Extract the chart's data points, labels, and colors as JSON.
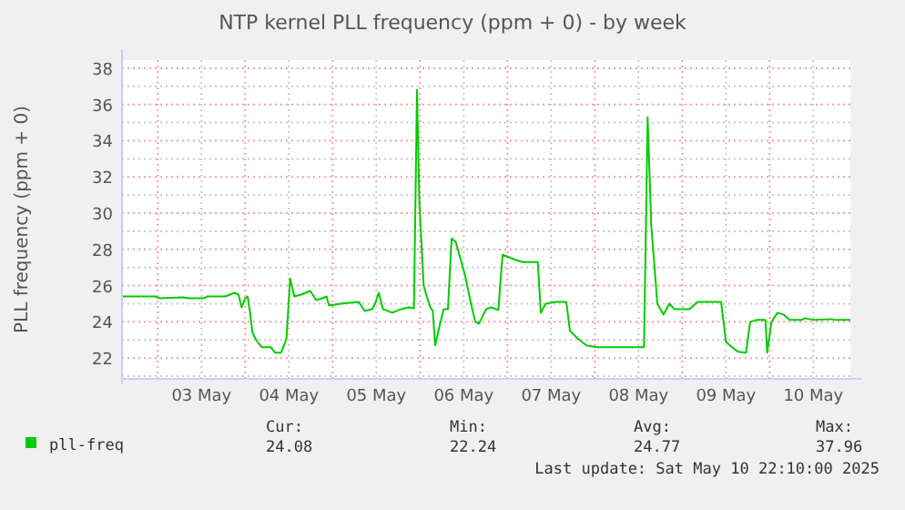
{
  "chart_data": {
    "type": "line",
    "title": "NTP kernel PLL frequency (ppm + 0) - by week",
    "ylabel": "PLL frequency (ppm + 0)",
    "x": [
      "2025-05-02T14:10",
      "2025-05-02T23:20",
      "2025-05-03T00:30",
      "2025-05-03T06:50",
      "2025-05-03T08:30",
      "2025-05-03T12:40",
      "2025-05-03T13:30",
      "2025-05-03T18:30",
      "2025-05-03T21:00",
      "2025-05-03T22:10",
      "2025-05-03T23:00",
      "2025-05-04T00:00",
      "2025-05-04T00:40",
      "2025-05-04T01:20",
      "2025-05-04T02:00",
      "2025-05-04T03:00",
      "2025-05-04T04:30",
      "2025-05-04T07:00",
      "2025-05-04T08:10",
      "2025-05-04T09:50",
      "2025-05-04T10:40",
      "2025-05-04T11:20",
      "2025-05-04T12:20",
      "2025-05-04T13:30",
      "2025-05-04T15:20",
      "2025-05-04T17:50",
      "2025-05-04T19:30",
      "2025-05-04T21:10",
      "2025-05-04T22:20",
      "2025-05-04T23:00",
      "2025-05-05T02:10",
      "2025-05-05T07:10",
      "2025-05-05T08:50",
      "2025-05-05T10:50",
      "2025-05-05T11:40",
      "2025-05-05T12:40",
      "2025-05-05T13:50",
      "2025-05-05T16:20",
      "2025-05-05T18:50",
      "2025-05-05T20:50",
      "2025-05-05T22:20",
      "2025-05-05T23:10",
      "2025-05-05T23:50",
      "2025-05-06T01:00",
      "2025-05-06T01:50",
      "2025-05-06T02:50",
      "2025-05-06T03:30",
      "2025-05-06T04:10",
      "2025-05-06T05:10",
      "2025-05-06T06:30",
      "2025-05-06T07:40",
      "2025-05-06T08:40",
      "2025-05-06T09:50",
      "2025-05-06T10:40",
      "2025-05-06T12:20",
      "2025-05-06T14:00",
      "2025-05-06T15:10",
      "2025-05-06T16:10",
      "2025-05-06T18:10",
      "2025-05-06T19:30",
      "2025-05-06T21:30",
      "2025-05-06T22:40",
      "2025-05-07T00:00",
      "2025-05-07T02:30",
      "2025-05-07T04:10",
      "2025-05-07T08:20",
      "2025-05-07T09:10",
      "2025-05-07T10:30",
      "2025-05-07T13:20",
      "2025-05-07T16:10",
      "2025-05-07T17:10",
      "2025-05-07T19:10",
      "2025-05-07T21:40",
      "2025-05-08T00:30",
      "2025-05-08T13:30",
      "2025-05-08T14:30",
      "2025-05-08T15:30",
      "2025-05-08T17:10",
      "2025-05-08T18:50",
      "2025-05-08T20:30",
      "2025-05-08T21:50",
      "2025-05-09T02:00",
      "2025-05-09T04:10",
      "2025-05-09T10:40",
      "2025-05-09T12:00",
      "2025-05-09T13:40",
      "2025-05-09T15:20",
      "2025-05-09T17:30",
      "2025-05-09T18:40",
      "2025-05-09T20:20",
      "2025-05-09T22:50",
      "2025-05-09T23:20",
      "2025-05-10T00:30",
      "2025-05-10T02:10",
      "2025-05-10T03:50",
      "2025-05-10T05:30",
      "2025-05-10T08:50",
      "2025-05-10T09:40",
      "2025-05-10T12:10",
      "2025-05-10T17:10",
      "2025-05-10T18:00",
      "2025-05-10T22:10"
    ],
    "series": [
      {
        "name": "pll-freq",
        "color": "#00cc00",
        "values": [
          25.4,
          25.4,
          25.3,
          25.35,
          25.3,
          25.3,
          25.4,
          25.4,
          25.6,
          25.5,
          24.8,
          25.3,
          25.4,
          24.5,
          23.4,
          23.0,
          22.6,
          22.6,
          22.3,
          22.3,
          22.7,
          23.1,
          26.4,
          25.4,
          25.5,
          25.7,
          25.2,
          25.3,
          25.4,
          24.9,
          25.0,
          25.1,
          24.6,
          24.7,
          25.0,
          25.6,
          24.7,
          24.5,
          24.7,
          24.8,
          24.75,
          36.8,
          30.5,
          26.0,
          25.4,
          24.8,
          24.6,
          22.7,
          23.6,
          24.7,
          24.7,
          28.6,
          28.4,
          27.8,
          26.6,
          25.0,
          24.0,
          23.9,
          24.7,
          24.8,
          24.65,
          27.7,
          27.6,
          27.4,
          27.3,
          27.3,
          24.5,
          25.0,
          25.1,
          25.1,
          23.5,
          23.1,
          22.7,
          22.6,
          22.6,
          35.3,
          29.3,
          25.0,
          24.4,
          25.0,
          24.7,
          24.7,
          25.1,
          25.1,
          22.9,
          22.6,
          22.35,
          22.3,
          24.0,
          24.1,
          24.1,
          22.3,
          24.0,
          24.5,
          24.4,
          24.1,
          24.1,
          24.2,
          24.1,
          24.15,
          24.1,
          24.1
        ]
      }
    ],
    "xlim": [
      "2025-05-02T14:10",
      "2025-05-10T22:10"
    ],
    "xticks": [
      {
        "value": "2025-05-03T00:00",
        "label": null
      },
      {
        "value": "2025-05-03T12:00",
        "label": "03 May"
      },
      {
        "value": "2025-05-04T00:00",
        "label": null
      },
      {
        "value": "2025-05-04T12:00",
        "label": "04 May"
      },
      {
        "value": "2025-05-05T00:00",
        "label": null
      },
      {
        "value": "2025-05-05T12:00",
        "label": "05 May"
      },
      {
        "value": "2025-05-06T00:00",
        "label": null
      },
      {
        "value": "2025-05-06T12:00",
        "label": "06 May"
      },
      {
        "value": "2025-05-07T00:00",
        "label": null
      },
      {
        "value": "2025-05-07T12:00",
        "label": "07 May"
      },
      {
        "value": "2025-05-08T00:00",
        "label": null
      },
      {
        "value": "2025-05-08T12:00",
        "label": "08 May"
      },
      {
        "value": "2025-05-09T00:00",
        "label": null
      },
      {
        "value": "2025-05-09T12:00",
        "label": "09 May"
      },
      {
        "value": "2025-05-10T00:00",
        "label": null
      },
      {
        "value": "2025-05-10T12:00",
        "label": "10 May"
      }
    ],
    "ylim": [
      20.85,
      38.45
    ],
    "yticks": [
      {
        "value": 21,
        "label": null
      },
      22,
      {
        "value": 23,
        "label": null
      },
      24,
      {
        "value": 25,
        "label": null
      },
      26,
      {
        "value": 27,
        "label": null
      },
      28,
      {
        "value": 29,
        "label": null
      },
      30,
      {
        "value": 31,
        "label": null
      },
      32,
      {
        "value": 33,
        "label": null
      },
      34,
      {
        "value": 35,
        "label": null
      },
      36,
      {
        "value": 37,
        "label": null
      },
      38
    ],
    "grid": true,
    "legend": "bottom left",
    "marker": "none",
    "line_style": "solid",
    "annotations": [
      "Cur:",
      "Min:",
      "Avg:",
      "Max:",
      "24.08",
      "22.24",
      "24.77",
      "37.96",
      "Last update: Sat May 10 22:10:00 2025"
    ]
  }
}
